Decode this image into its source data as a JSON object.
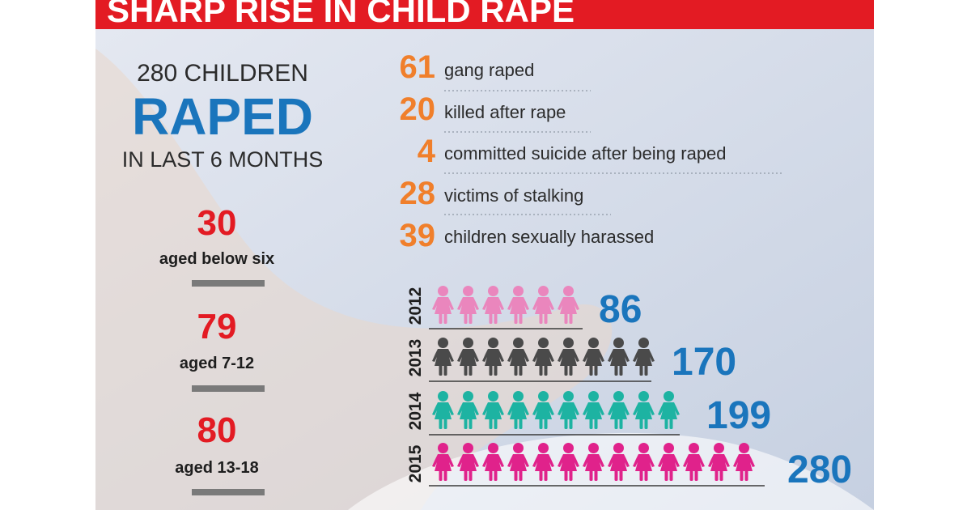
{
  "header": {
    "title": "SHARP RISE IN CHILD RAPE"
  },
  "summary": {
    "line1": "280 CHILDREN",
    "line2": "RAPED",
    "line3": "IN LAST 6 MONTHS"
  },
  "age_groups": [
    {
      "value": 30,
      "label": "aged below six"
    },
    {
      "value": 79,
      "label": "aged 7-12"
    },
    {
      "value": 80,
      "label": "aged 13-18"
    }
  ],
  "breakdown": [
    {
      "value": 61,
      "label": "gang raped"
    },
    {
      "value": 20,
      "label": "killed after rape"
    },
    {
      "value": 4,
      "label": "committed suicide after being raped"
    },
    {
      "value": 28,
      "label": "victims of stalking"
    },
    {
      "value": 39,
      "label": "children sexually harassed"
    }
  ],
  "yearly": [
    {
      "year": 2012,
      "value": 86
    },
    {
      "year": 2013,
      "value": 170
    },
    {
      "year": 2014,
      "value": 199
    },
    {
      "year": 2015,
      "value": 280
    }
  ]
}
